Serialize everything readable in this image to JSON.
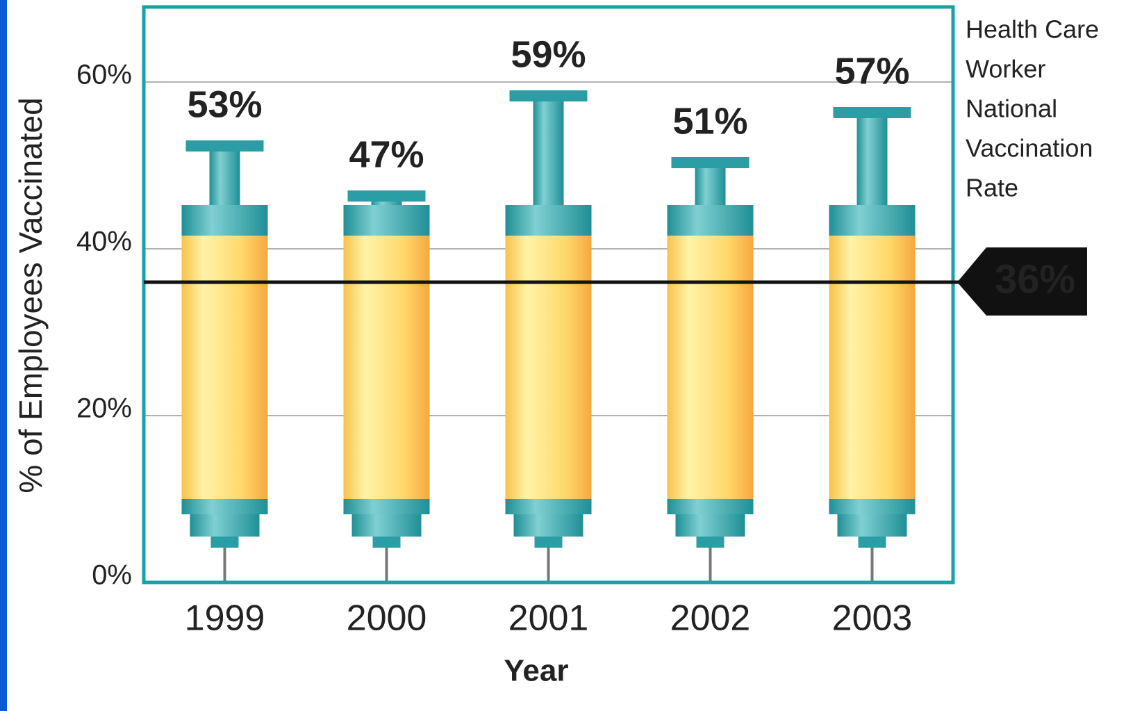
{
  "chart_data": {
    "type": "syringe-bar",
    "y_axis_label": "% of Employees Vaccinated",
    "x_axis_label": "Year",
    "categories": [
      "1999",
      "2000",
      "2001",
      "2002",
      "2003"
    ],
    "values": [
      53,
      47,
      59,
      51,
      57
    ],
    "value_labels": [
      "53%",
      "47%",
      "59%",
      "51%",
      "57%"
    ],
    "color": "#2b9ea5",
    "ylim": [
      0,
      69
    ],
    "yticks": [
      {
        "value": 0,
        "label": "0%"
      },
      {
        "value": 20,
        "label": "20%"
      },
      {
        "value": 40,
        "label": "40%"
      },
      {
        "value": 60,
        "label": "60%"
      }
    ],
    "grid": true,
    "reference_line": {
      "value": 36,
      "value_label": "36%",
      "text": [
        "Health Care",
        "Worker",
        "National",
        "Vaccination",
        "Rate"
      ]
    }
  }
}
